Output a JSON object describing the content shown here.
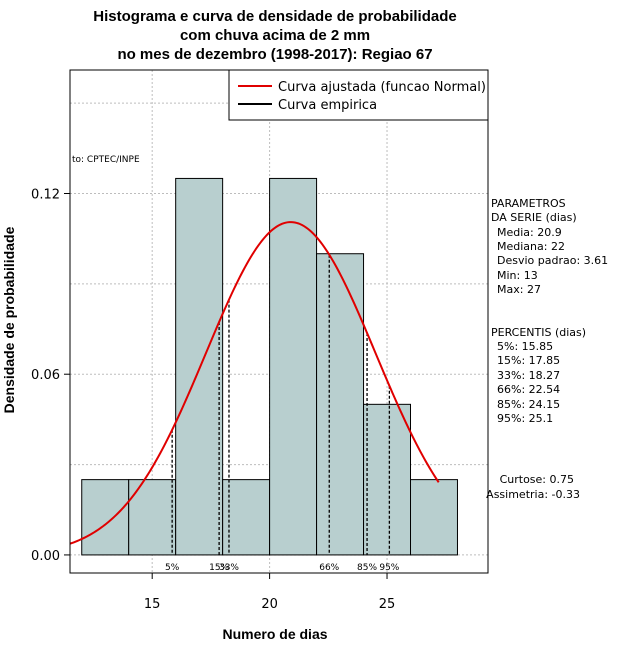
{
  "chart_data": {
    "type": "bar",
    "title_lines": [
      "Histograma e curva de densidade de probabilidade",
      "com chuva acima de 2 mm",
      "no mes de dezembro (1998-2017): Regiao 67"
    ],
    "xlabel": "Numero de dias",
    "ylabel": "Densidade de probabilidade",
    "xlim": [
      11.5,
      29.3
    ],
    "ylim": [
      -0.006,
      0.161
    ],
    "x_ticks": [
      15,
      20,
      25
    ],
    "x_tick_labels": [
      "15",
      "20",
      "25"
    ],
    "y_ticks": [
      0.0,
      0.06,
      0.12
    ],
    "y_tick_labels": [
      "0.00",
      "0.06",
      "0.12"
    ],
    "grid": true,
    "bins": [
      {
        "start": 12,
        "end": 14,
        "density": 0.025
      },
      {
        "start": 14,
        "end": 16,
        "density": 0.025
      },
      {
        "start": 16,
        "end": 18,
        "density": 0.125
      },
      {
        "start": 18,
        "end": 20,
        "density": 0.025
      },
      {
        "start": 20,
        "end": 22,
        "density": 0.125
      },
      {
        "start": 22,
        "end": 24,
        "density": 0.1
      },
      {
        "start": 24,
        "end": 26,
        "density": 0.05
      },
      {
        "start": 26,
        "end": 28,
        "density": 0.025
      }
    ],
    "bar_color": "#b8cfcf",
    "normal_curve": {
      "mean": 20.9,
      "sd": 3.61,
      "x_from": 11.5,
      "x_to": 27.2,
      "color": "#e00000"
    },
    "percentile_lines": [
      {
        "label": "5%",
        "x": 15.85
      },
      {
        "label": "15%",
        "x": 17.85
      },
      {
        "label": "33%",
        "x": 18.27
      },
      {
        "label": "66%",
        "x": 22.54
      },
      {
        "label": "85%",
        "x": 24.15
      },
      {
        "label": "95%",
        "x": 25.1
      }
    ],
    "legend": {
      "placement": "top-right",
      "entries": [
        {
          "label": "Curva ajustada (funcao Normal)",
          "color": "#e00000"
        },
        {
          "label": "Curva empirica",
          "color": "#000000"
        }
      ]
    },
    "source_note": "to: CPTEC/INPE",
    "side_panel": {
      "parametros_lines": [
        "PARAMETROS",
        "DA SERIE (dias)",
        "Media: 20.9",
        "Mediana: 22",
        "Desvio padrao: 3.61",
        "Min: 13",
        "Max: 27"
      ],
      "percentis_lines": [
        "PERCENTIS (dias)",
        "5%: 15.85",
        "15%: 17.85",
        "33%: 18.27",
        "66%: 22.54",
        "85%: 24.15",
        "95%: 25.1"
      ],
      "shape_lines": [
        "Curtose: 0.75",
        "Assimetria: -0.33"
      ]
    }
  }
}
